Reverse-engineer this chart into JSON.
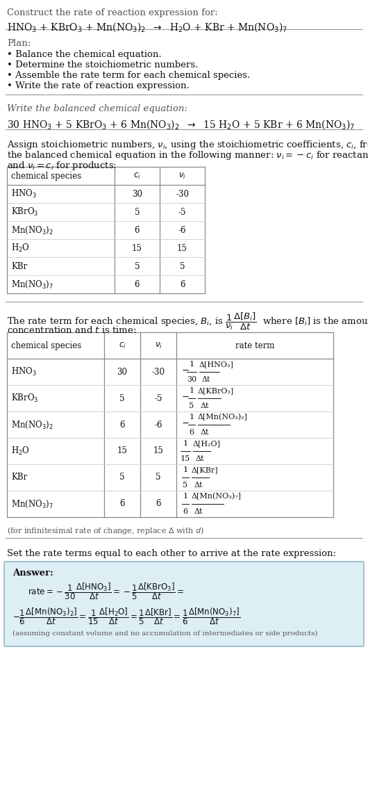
{
  "bg_color": "#ffffff",
  "text_color": "#111111",
  "gray_color": "#555555",
  "line_color": "#aaaaaa",
  "table_border": "#888888",
  "table_line": "#cccccc",
  "answer_bg": "#ddeef5",
  "answer_border": "#8ab8cc",
  "fs_body": 9.5,
  "fs_small": 8.5,
  "fs_tiny": 7.5,
  "species1": [
    "HNO$_3$",
    "KBrO$_3$",
    "Mn(NO$_3$)$_2$",
    "H$_2$O",
    "KBr",
    "Mn(NO$_3$)$_7$"
  ],
  "ci1": [
    "30",
    "5",
    "6",
    "15",
    "5",
    "6"
  ],
  "vi1": [
    "-30",
    "-5",
    "-6",
    "15",
    "5",
    "6"
  ],
  "ci2": [
    "30",
    "5",
    "6",
    "15",
    "5",
    "6"
  ],
  "vi2": [
    "-30",
    "-5",
    "-6",
    "15",
    "5",
    "6"
  ]
}
